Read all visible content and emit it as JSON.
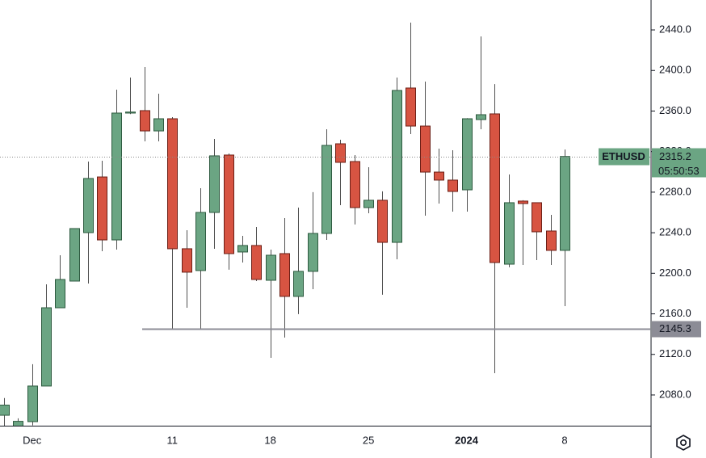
{
  "chart_data": {
    "type": "candlestick",
    "categories": [
      null,
      null,
      "Dec",
      null,
      null,
      null,
      null,
      null,
      null,
      null,
      null,
      null,
      "11",
      null,
      null,
      null,
      null,
      null,
      null,
      "18",
      null,
      null,
      null,
      null,
      null,
      null,
      "25",
      null,
      null,
      null,
      null,
      null,
      null,
      "2024",
      null,
      null,
      null,
      null,
      null,
      null,
      "8"
    ],
    "open": [
      2060,
      2045,
      2053.7,
      2088.8,
      2166.0,
      2192.3,
      2240.1,
      2295.0,
      2232.9,
      2358,
      2360.4,
      2340.4,
      2352.4,
      2224.2,
      2202.7,
      2260.0,
      2316.6,
      2221.0,
      2227.4,
      2193.1,
      2219.4,
      2177.2,
      2201.9,
      2239.3,
      2327.7,
      2310.2,
      2264.8,
      2272.0,
      2230.5,
      2382.7,
      2345.2,
      2299.8,
      2291.9,
      2282.3,
      2351.6,
      2357.2,
      2209.0,
      2271.2,
      2269.6,
      2241.7,
      2222.6
    ],
    "high": [
      2077,
      2057,
      2110.3,
      2189.1,
      2217.8,
      2244.1,
      2310.2,
      2311.0,
      2381.1,
      2393,
      2403.4,
      2377.1,
      2354.0,
      2242.5,
      2283.9,
      2332.5,
      2318.1,
      2236.9,
      2245.7,
      2223.4,
      2254.4,
      2264.8,
      2280.0,
      2342.0,
      2331.7,
      2316.6,
      2304.6,
      2280.8,
      2393.0,
      2447.2,
      2389.0,
      2322.9,
      2321.3,
      2353.0,
      2433.6,
      2386.6,
      2297.4,
      2272.0,
      2270.0,
      2257.6,
      2322.0
    ],
    "low": [
      2040,
      2040,
      2050.0,
      2088.8,
      2166.0,
      2192.3,
      2189.9,
      2221.8,
      2223.4,
      2357,
      2330.1,
      2330.1,
      2145.3,
      2166.0,
      2145.3,
      2224.2,
      2203.5,
      2210.6,
      2192.3,
      2116.6,
      2136.6,
      2159.7,
      2184.3,
      2232.9,
      2267.2,
      2248.1,
      2259.2,
      2178.8,
      2213.8,
      2337.3,
      2256.8,
      2268.8,
      2260.8,
      2260.8,
      2342.0,
      2101.5,
      2205.9,
      2208.2,
      2213.0,
      2208.2,
      2167.6
    ],
    "close": [
      2070,
      2054,
      2088.8,
      2166.0,
      2193.9,
      2244.1,
      2293.5,
      2232.9,
      2358.0,
      2359,
      2340.4,
      2352.4,
      2224.2,
      2201.1,
      2260.0,
      2315.8,
      2219.4,
      2227.4,
      2193.9,
      2217.8,
      2177.2,
      2201.9,
      2239.3,
      2326.1,
      2309.4,
      2264.8,
      2272.0,
      2230.5,
      2380.3,
      2345.2,
      2299.8,
      2291.9,
      2280.7,
      2352.4,
      2356.4,
      2210.6,
      2269.6,
      2268.8,
      2240.9,
      2222.6,
      2315.2
    ],
    "up_color": "#6ba583",
    "down_color": "#d75442",
    "ylim": [
      2049.7,
      2469.5
    ],
    "yticks": [
      {
        "value": 2080,
        "label": "2080.0"
      },
      {
        "value": 2120,
        "label": "2120.0"
      },
      {
        "value": 2160,
        "label": "2160.0"
      },
      {
        "value": 2200,
        "label": "2200.0"
      },
      {
        "value": 2240,
        "label": "2240.0"
      },
      {
        "value": 2280,
        "label": "2280.0"
      },
      {
        "value": 2320,
        "label": "2320.0"
      },
      {
        "value": 2360,
        "label": "2360.0"
      },
      {
        "value": 2400,
        "label": "2400.0"
      },
      {
        "value": 2440,
        "label": "2440.0"
      }
    ],
    "symbol": "ETHUSD",
    "last_price": 2315.2,
    "countdown": "05:50:53",
    "horizontal_line": 2145.3
  }
}
